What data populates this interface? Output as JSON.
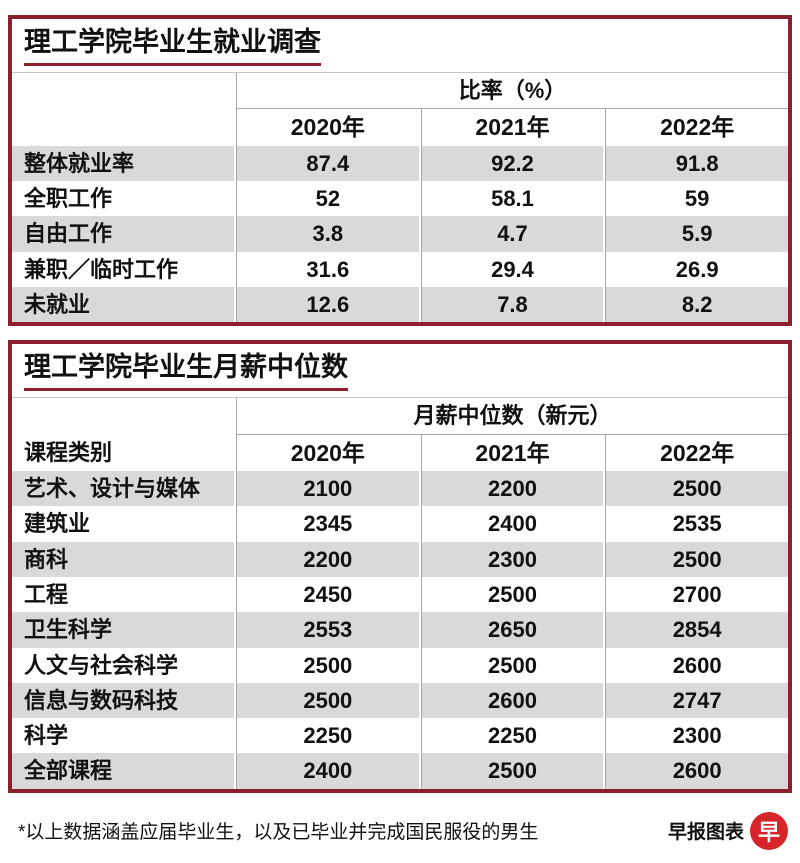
{
  "colors": {
    "accent": "#8e1f2e",
    "row_stripe": "#d9d9d9",
    "logo_red": "#d6252a"
  },
  "footer": {
    "note": "*以上数据涵盖应届毕业生，以及已毕业并完成国民服役的男生",
    "credit": "早报图表",
    "logo_char": "早"
  },
  "chart_data": [
    {
      "type": "table",
      "title": "理工学院毕业生就业调查",
      "unit_header": "比率（%）",
      "columns": [
        "",
        "2020年",
        "2021年",
        "2022年"
      ],
      "rows": [
        [
          "整体就业率",
          87.4,
          92.2,
          91.8
        ],
        [
          "全职工作",
          52,
          58.1,
          59
        ],
        [
          "自由工作",
          3.8,
          4.7,
          5.9
        ],
        [
          "兼职／临时工作",
          31.6,
          29.4,
          26.9
        ],
        [
          "未就业",
          12.6,
          7.8,
          8.2
        ]
      ],
      "layout": {
        "stripe_start": "gray",
        "grid": "vertical-separators",
        "legend": "none"
      }
    },
    {
      "type": "table",
      "title": "理工学院毕业生月薪中位数",
      "unit_header": "月薪中位数（新元）",
      "columns": [
        "课程类别",
        "2020年",
        "2021年",
        "2022年"
      ],
      "rows": [
        [
          "艺术、设计与媒体",
          2100,
          2200,
          2500
        ],
        [
          "建筑业",
          2345,
          2400,
          2535
        ],
        [
          "商科",
          2200,
          2300,
          2500
        ],
        [
          "工程",
          2450,
          2500,
          2700
        ],
        [
          "卫生科学",
          2553,
          2650,
          2854
        ],
        [
          "人文与社会科学",
          2500,
          2500,
          2600
        ],
        [
          "信息与数码科技",
          2500,
          2600,
          2747
        ],
        [
          "科学",
          2250,
          2250,
          2300
        ],
        [
          "全部课程",
          2400,
          2500,
          2600
        ]
      ],
      "layout": {
        "stripe_start": "gray",
        "grid": "vertical-separators",
        "legend": "none"
      }
    }
  ]
}
